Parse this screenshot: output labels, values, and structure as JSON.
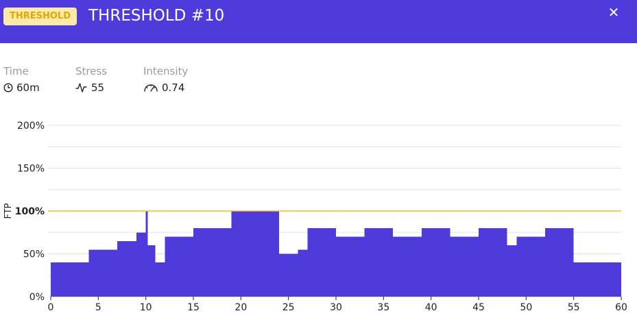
{
  "header": {
    "badge": "THRESHOLD",
    "title": "THRESHOLD #10",
    "close_icon": "close-icon"
  },
  "stats": {
    "time": {
      "label": "Time",
      "value": "60m",
      "icon": "clock-icon"
    },
    "stress": {
      "label": "Stress",
      "value": "55",
      "icon": "pulse-icon"
    },
    "intensity": {
      "label": "Intensity",
      "value": "0.74",
      "icon": "gauge-icon"
    }
  },
  "colors": {
    "accent": "#4f3bdc",
    "threshold_line": "#f5b82e",
    "badge_bg": "#fbe9a7",
    "badge_text": "#e0a800"
  },
  "chart_data": {
    "type": "area",
    "ylabel": "FTP",
    "xlim": [
      0,
      60
    ],
    "ylim": [
      0,
      200
    ],
    "x_ticks": [
      "0",
      "5",
      "10",
      "15",
      "20",
      "25",
      "30",
      "35",
      "40",
      "45",
      "50",
      "55",
      "60"
    ],
    "y_ticks": [
      "0%",
      "50%",
      "100%",
      "150%",
      "200%"
    ],
    "threshold": 100,
    "grid": true,
    "segments": [
      {
        "start": 0,
        "end": 4,
        "value": 40
      },
      {
        "start": 4,
        "end": 7,
        "value": 55
      },
      {
        "start": 7,
        "end": 9,
        "value": 65
      },
      {
        "start": 9,
        "end": 10,
        "value": 75
      },
      {
        "start": 10,
        "end": 10.2,
        "value": 100
      },
      {
        "start": 10.2,
        "end": 11,
        "value": 60
      },
      {
        "start": 11,
        "end": 12,
        "value": 40
      },
      {
        "start": 12,
        "end": 15,
        "value": 70
      },
      {
        "start": 15,
        "end": 19,
        "value": 80
      },
      {
        "start": 19,
        "end": 24,
        "value": 100
      },
      {
        "start": 24,
        "end": 26,
        "value": 50
      },
      {
        "start": 26,
        "end": 27,
        "value": 55
      },
      {
        "start": 27,
        "end": 30,
        "value": 80
      },
      {
        "start": 30,
        "end": 33,
        "value": 70
      },
      {
        "start": 33,
        "end": 36,
        "value": 80
      },
      {
        "start": 36,
        "end": 39,
        "value": 70
      },
      {
        "start": 39,
        "end": 42,
        "value": 80
      },
      {
        "start": 42,
        "end": 45,
        "value": 70
      },
      {
        "start": 45,
        "end": 48,
        "value": 80
      },
      {
        "start": 48,
        "end": 49,
        "value": 60
      },
      {
        "start": 49,
        "end": 52,
        "value": 70
      },
      {
        "start": 52,
        "end": 55,
        "value": 80
      },
      {
        "start": 55,
        "end": 60,
        "value": 40
      }
    ]
  }
}
